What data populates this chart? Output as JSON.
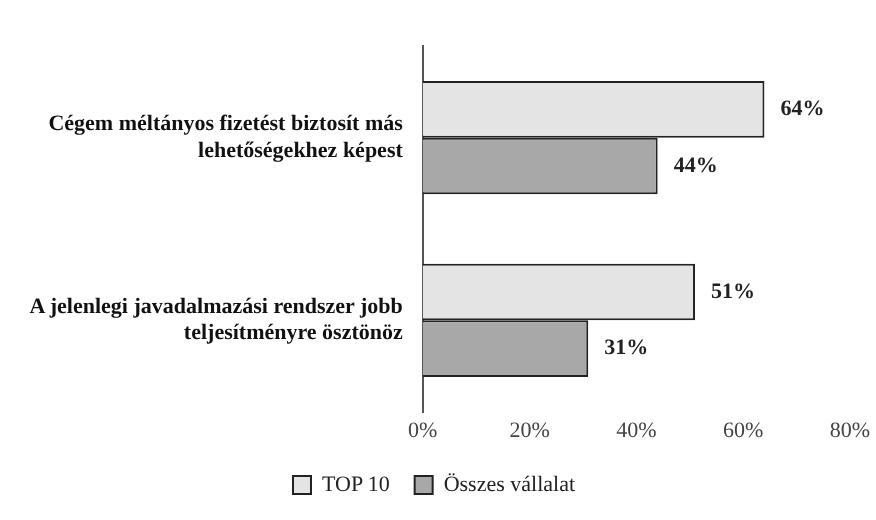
{
  "chart_data": {
    "type": "bar",
    "orientation": "horizontal",
    "categories": [
      "Cégem méltányos fizetést biztosít más lehetőségekhez képest",
      "A jelenlegi javadalmazási rendszer jobb teljesítményre ösztönöz"
    ],
    "series": [
      {
        "name": "TOP 10",
        "color": "#e4e4e4",
        "values": [
          64,
          51
        ],
        "value_labels": [
          "64%",
          "51%"
        ]
      },
      {
        "name": "Összes vállalat",
        "color": "#a8a8a8",
        "values": [
          44,
          31
        ],
        "value_labels": [
          "44%",
          "31%"
        ]
      }
    ],
    "xlim": [
      0,
      80
    ],
    "xticks": [
      {
        "value": 0,
        "label": "0%"
      },
      {
        "value": 20,
        "label": "20%"
      },
      {
        "value": 40,
        "label": "40%"
      },
      {
        "value": 60,
        "label": "60%"
      },
      {
        "value": 80,
        "label": "80%"
      }
    ],
    "grid": false,
    "legend": "bottom"
  }
}
